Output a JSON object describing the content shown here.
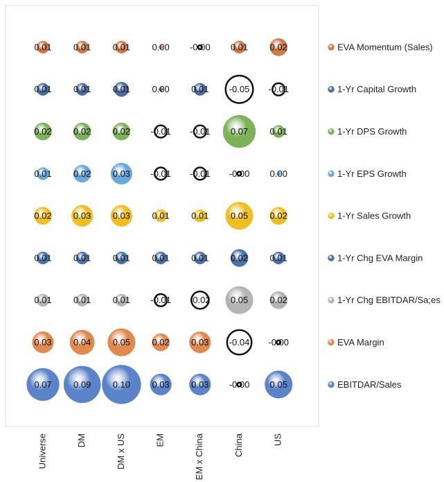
{
  "chart_data": {
    "type": "bubble",
    "categories": [
      "Universe",
      "DM",
      "DM x US",
      "EM",
      "EM x China",
      "China",
      "US"
    ],
    "legend": "right",
    "series": [
      {
        "name": "EVA Momentum (Sales)",
        "color": "#cf7a46",
        "values": [
          0.01,
          0.01,
          0.01,
          0.001,
          -0.001,
          0.01,
          0.02
        ],
        "value_labels": [
          "0.01",
          "0.01",
          "0.01",
          "0.00",
          "-0.00",
          "0.01",
          "0.02"
        ]
      },
      {
        "name": "1-Yr Capital Growth",
        "color": "#4a6aa3",
        "values": [
          0.01,
          0.01,
          0.014,
          0.001,
          0.01,
          -0.05,
          -0.01
        ],
        "value_labels": [
          "0.01",
          "0.01",
          "0.01",
          "0.00",
          "0.01",
          "-0.05",
          "-0.01"
        ]
      },
      {
        "name": "1-Yr DPS Growth",
        "color": "#7db258",
        "values": [
          0.02,
          0.02,
          0.02,
          -0.01,
          -0.01,
          0.07,
          0.01
        ],
        "value_labels": [
          "0.02",
          "0.02",
          "0.02",
          "-0.01",
          "-0.01",
          "0.07",
          "0.01"
        ]
      },
      {
        "name": "1-Yr EPS Growth",
        "color": "#6aa8dc",
        "values": [
          0.01,
          0.02,
          0.03,
          -0.01,
          -0.01,
          -0.001,
          0.001
        ],
        "value_labels": [
          "0.01",
          "0.02",
          "0.03",
          "-0.01",
          "-0.01",
          "-0.00",
          "0.00"
        ]
      },
      {
        "name": "1-Yr Sales Growth",
        "color": "#efbf22",
        "values": [
          0.02,
          0.03,
          0.03,
          0.01,
          0.01,
          0.05,
          0.02
        ],
        "value_labels": [
          "0.02",
          "0.03",
          "0.03",
          "0.01",
          "0.01",
          "0.05",
          "0.02"
        ]
      },
      {
        "name": "1-Yr Chg EVA Margin",
        "color": "#4a72aa",
        "values": [
          0.01,
          0.01,
          0.01,
          0.01,
          0.01,
          0.02,
          0.01
        ],
        "value_labels": [
          "0.01",
          "0.01",
          "0.01",
          "0.01",
          "0.01",
          "0.02",
          "0.01"
        ]
      },
      {
        "name": "1-Yr Chg EBITDAR/Sa;es",
        "color": "#b4b4b4",
        "values": [
          0.01,
          0.01,
          0.01,
          -0.01,
          -0.02,
          0.05,
          0.02
        ],
        "value_labels": [
          "0.01",
          "0.01",
          "0.01",
          "-0.01",
          "-0.02",
          "0.05",
          "0.02"
        ]
      },
      {
        "name": "EVA Margin",
        "color": "#e08a50",
        "values": [
          0.03,
          0.04,
          0.05,
          0.02,
          0.03,
          -0.04,
          -0.001
        ],
        "value_labels": [
          "0.03",
          "0.04",
          "0.05",
          "0.02",
          "0.03",
          "-0.04",
          "-0.00"
        ]
      },
      {
        "name": "EBITDAR/Sales",
        "color": "#5b83c9",
        "values": [
          0.07,
          0.09,
          0.1,
          0.03,
          0.03,
          -0.001,
          0.05
        ],
        "value_labels": [
          "0.07",
          "0.09",
          "0.10",
          "0.03",
          "0.03",
          "-0.00",
          "0.05"
        ]
      }
    ]
  }
}
